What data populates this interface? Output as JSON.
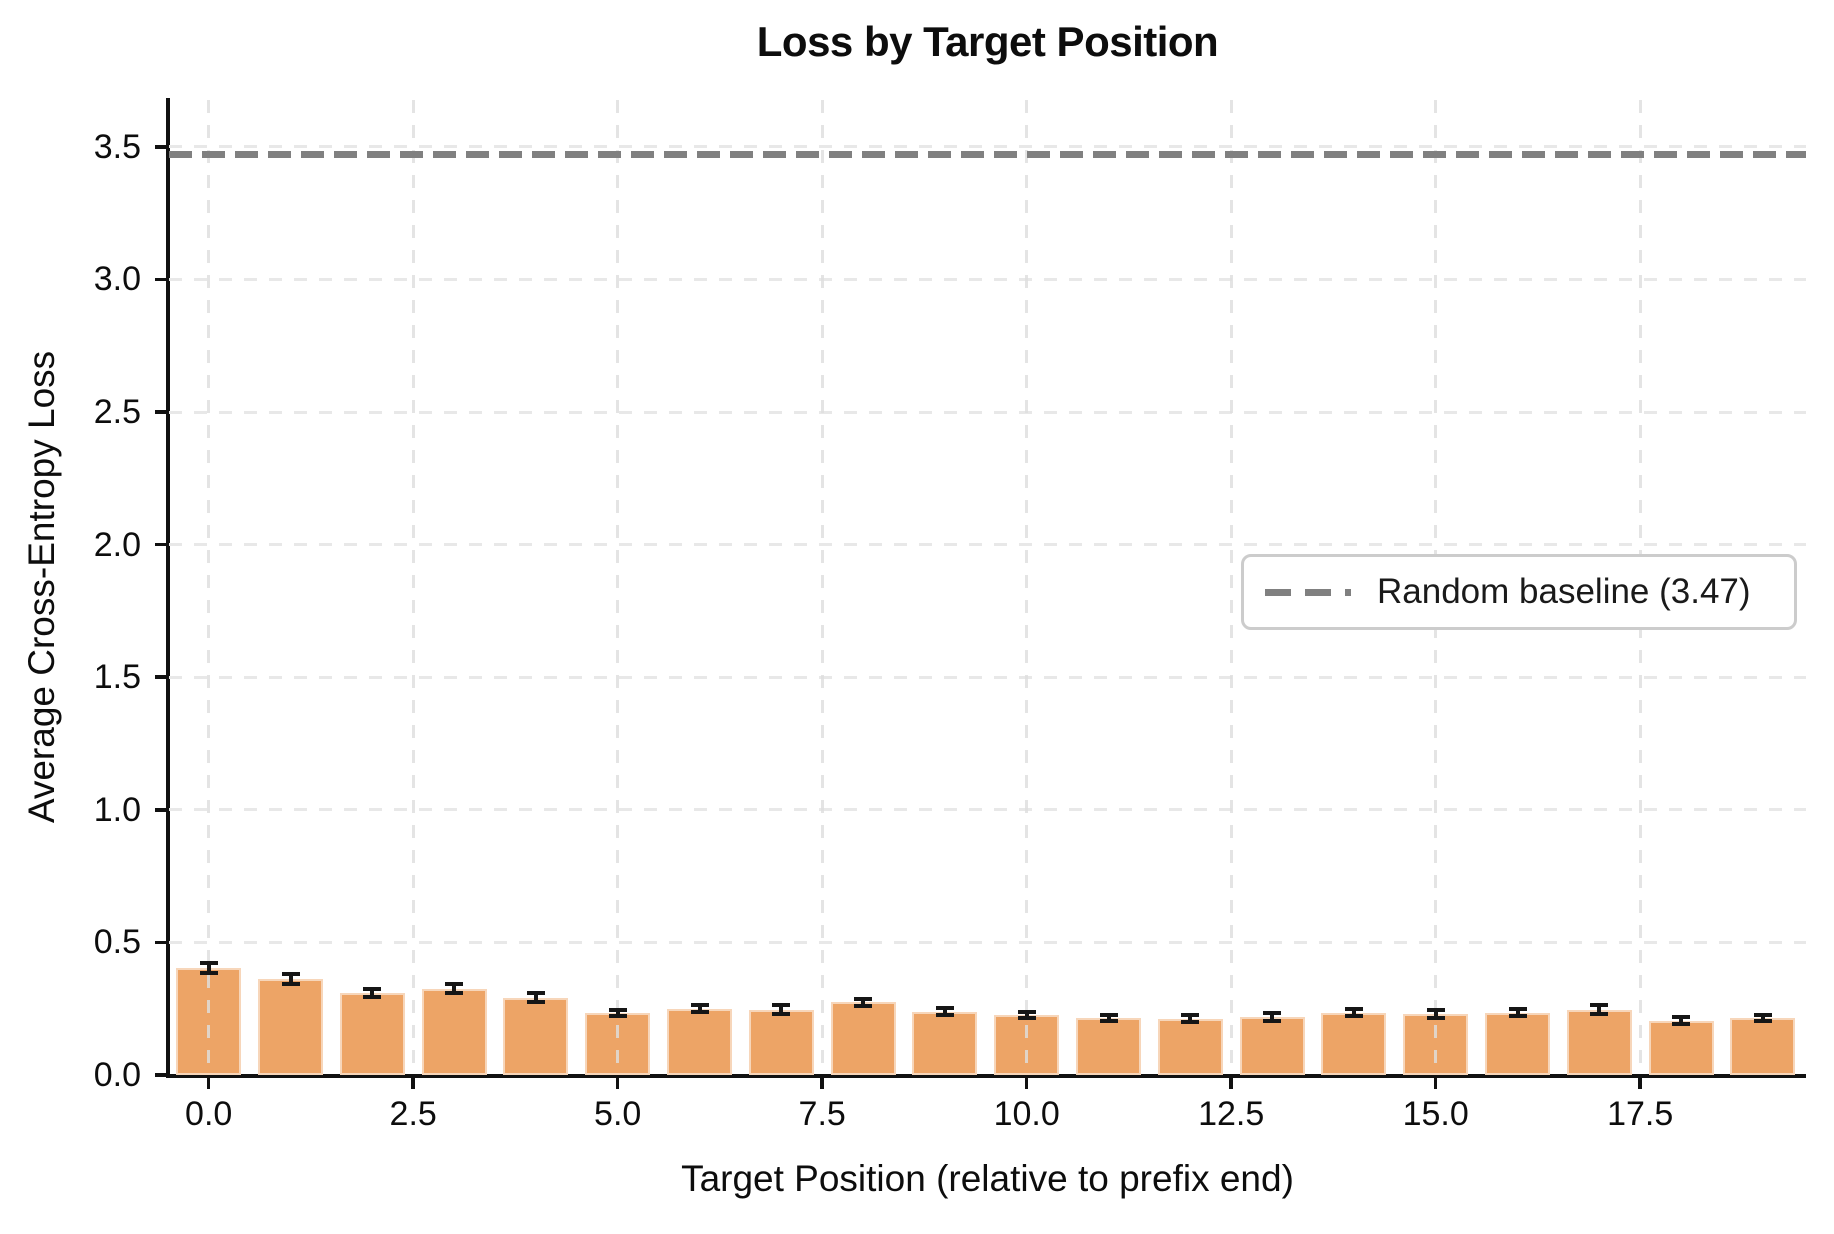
{
  "chart_data": {
    "type": "bar",
    "title": "Loss by Target Position",
    "xlabel": "Target Position (relative to prefix end)",
    "ylabel": "Average Cross-Entropy Loss",
    "x": [
      0,
      1,
      2,
      3,
      4,
      5,
      6,
      7,
      8,
      9,
      10,
      11,
      12,
      13,
      14,
      15,
      16,
      17,
      18,
      19
    ],
    "values": [
      0.403,
      0.362,
      0.31,
      0.326,
      0.292,
      0.235,
      0.25,
      0.247,
      0.274,
      0.238,
      0.227,
      0.216,
      0.212,
      0.22,
      0.235,
      0.23,
      0.235,
      0.247,
      0.205,
      0.215
    ],
    "errors": [
      0.027,
      0.025,
      0.022,
      0.025,
      0.025,
      0.019,
      0.021,
      0.023,
      0.021,
      0.021,
      0.019,
      0.019,
      0.021,
      0.023,
      0.021,
      0.024,
      0.022,
      0.023,
      0.021,
      0.018
    ],
    "baseline": {
      "value": 3.47,
      "legend_label": "Random baseline (3.47)",
      "color": "#808080",
      "style": "dashed"
    },
    "x_ticks": [
      0,
      2.5,
      5,
      7.5,
      10,
      12.5,
      15,
      17.5
    ],
    "x_tick_labels": [
      "0.0",
      "2.5",
      "5.0",
      "7.5",
      "10.0",
      "12.5",
      "15.0",
      "17.5"
    ],
    "y_ticks": [
      0,
      0.5,
      1.0,
      1.5,
      2.0,
      2.5,
      3.0,
      3.5
    ],
    "y_tick_labels": [
      "0.0",
      "0.5",
      "1.0",
      "1.5",
      "2.0",
      "2.5",
      "3.0",
      "3.5"
    ],
    "ylim": [
      0,
      3.68
    ],
    "xlim": [
      -0.42,
      19.5
    ],
    "grid": true,
    "grid_style": "dashed",
    "legend_position": "center-right",
    "bar_color": "#eda466",
    "bar_edge_color": "#f6d2ae",
    "error_bar_color": "#161616"
  }
}
